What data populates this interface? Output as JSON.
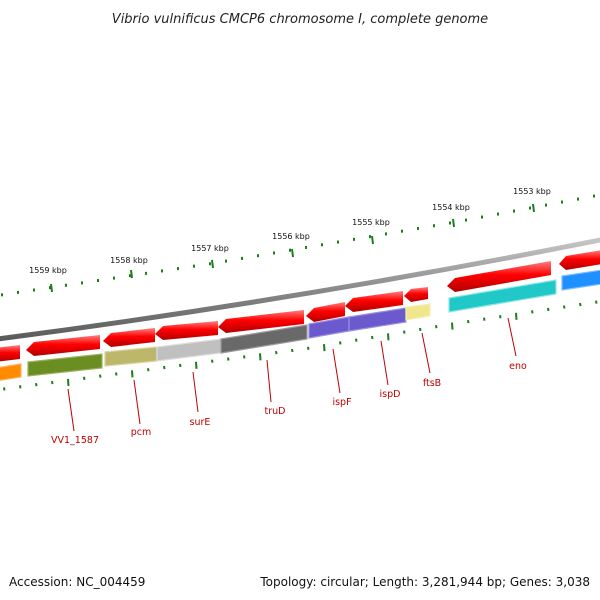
{
  "title": "Vibrio vulnificus CMCP6 chromosome I, complete genome",
  "accession": "Accession: NC_004459",
  "topology": "Topology: circular; Length: 3,281,944 bp; Genes: 3,038",
  "kbp_ticks": [
    "1559 kbp",
    "1558 kbp",
    "1557 kbp",
    "1556 kbp",
    "1555 kbp",
    "1554 kbp",
    "1553 kbp"
  ],
  "genes": [
    {
      "name": "VV1_1587",
      "color": "#6b8e23"
    },
    {
      "name": "pcm",
      "color": "#bdb76b"
    },
    {
      "name": "surE",
      "color": "#c0c0c0"
    },
    {
      "name": "truD",
      "color": "#696969"
    },
    {
      "name": "ispF",
      "color": "#6a5acd"
    },
    {
      "name": "ispD",
      "color": "#6a5acd"
    },
    {
      "name": "ftsB",
      "color": "#f0e68c"
    },
    {
      "name": "eno",
      "color": "#20c8c8"
    }
  ],
  "colors": {
    "forward_strand": "#ff0000",
    "backbone": "#888888",
    "ticks": "#1a7f1a",
    "label_text": "#c00000",
    "unnamed_left_gene": "#ff8c00",
    "unnamed_right_gene": "#1e90ff"
  }
}
